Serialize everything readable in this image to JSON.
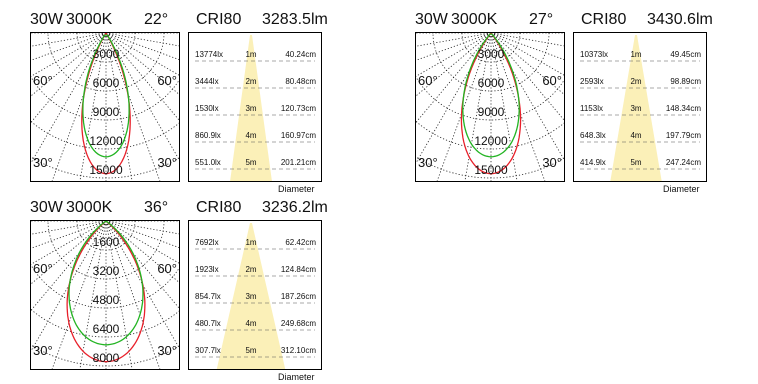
{
  "chart_data": [
    {
      "type": "polar",
      "power": "30W",
      "cct": "3000K",
      "beam_angle": "22°",
      "cri": "CRI80",
      "lumens": "3283.5lm",
      "angle_labels": [
        "60°",
        "60°",
        "30°",
        "30°"
      ],
      "radial_labels": [
        "3000",
        "6000",
        "9000",
        "12000",
        "15000"
      ],
      "radial_max": 15000,
      "curve_colors": [
        "#e8202a",
        "#22b422"
      ],
      "cone_rows": [
        {
          "lux": "13774lx",
          "distance": "1m",
          "diameter": "40.24cm"
        },
        {
          "lux": "3444lx",
          "distance": "2m",
          "diameter": "80.48cm"
        },
        {
          "lux": "1530lx",
          "distance": "3m",
          "diameter": "120.73cm"
        },
        {
          "lux": "860.9lx",
          "distance": "4m",
          "diameter": "160.97cm"
        },
        {
          "lux": "551.0lx",
          "distance": "5m",
          "diameter": "201.21cm"
        }
      ],
      "diameter_label": "Diameter"
    },
    {
      "type": "polar",
      "power": "30W",
      "cct": "3000K",
      "beam_angle": "27°",
      "cri": "CRI80",
      "lumens": "3430.6lm",
      "angle_labels": [
        "60°",
        "60°",
        "30°",
        "30°"
      ],
      "radial_labels": [
        "3000",
        "6000",
        "9000",
        "12000",
        "15000"
      ],
      "radial_max": 15000,
      "curve_colors": [
        "#e8202a",
        "#22b422"
      ],
      "cone_rows": [
        {
          "lux": "10373lx",
          "distance": "1m",
          "diameter": "49.45cm"
        },
        {
          "lux": "2593lx",
          "distance": "2m",
          "diameter": "98.89cm"
        },
        {
          "lux": "1153lx",
          "distance": "3m",
          "diameter": "148.34cm"
        },
        {
          "lux": "648.3lx",
          "distance": "4m",
          "diameter": "197.79cm"
        },
        {
          "lux": "414.9lx",
          "distance": "5m",
          "diameter": "247.24cm"
        }
      ],
      "diameter_label": "Diameter"
    },
    {
      "type": "polar",
      "power": "30W",
      "cct": "3000K",
      "beam_angle": "36°",
      "cri": "CRI80",
      "lumens": "3236.2lm",
      "angle_labels": [
        "60°",
        "60°",
        "30°",
        "30°"
      ],
      "radial_labels": [
        "1600",
        "3200",
        "4800",
        "6400",
        "8000"
      ],
      "radial_max": 8000,
      "curve_colors": [
        "#e8202a",
        "#22b422"
      ],
      "cone_rows": [
        {
          "lux": "7692lx",
          "distance": "1m",
          "diameter": "62.42cm"
        },
        {
          "lux": "1923lx",
          "distance": "2m",
          "diameter": "124.84cm"
        },
        {
          "lux": "854.7lx",
          "distance": "3m",
          "diameter": "187.26cm"
        },
        {
          "lux": "480.7lx",
          "distance": "4m",
          "diameter": "249.68cm"
        },
        {
          "lux": "307.7lx",
          "distance": "5m",
          "diameter": "312.10cm"
        }
      ],
      "diameter_label": "Diameter"
    }
  ]
}
